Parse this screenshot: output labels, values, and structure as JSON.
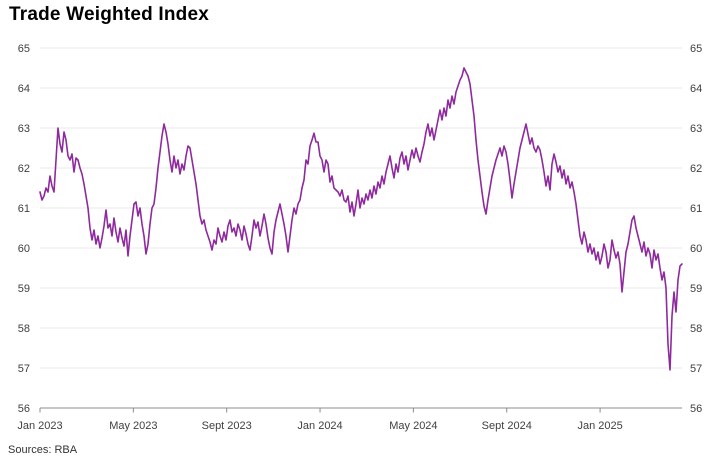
{
  "page": {
    "title": "Trade Weighted Index",
    "source": "Sources: RBA"
  },
  "colors": {
    "line": "#8E2A9E",
    "grid": "#e9e9e9",
    "axis": "#8c8c8c",
    "tick_text": "#404040",
    "title_text": "#000000"
  },
  "chart_data": {
    "type": "line",
    "title": "Trade Weighted Index",
    "xlabel": "",
    "ylabel": "",
    "ylim": [
      56,
      65
    ],
    "y_ticks": [
      56,
      57,
      58,
      59,
      60,
      61,
      62,
      63,
      64,
      65
    ],
    "y_labels_both_sides": true,
    "grid": "horizontal gridlines only",
    "legend": "none",
    "x_range_months": [
      0,
      27.51
    ],
    "x_start": "Jan 2023",
    "x_end": "mid-Apr 2025",
    "x_tick_months": [
      0,
      4,
      8,
      12,
      16,
      20,
      24
    ],
    "x_tick_labels": [
      "Jan 2023",
      "May 2023",
      "Sept 2023",
      "Jan 2024",
      "May 2024",
      "Sept 2024",
      "Jan 2025"
    ],
    "source": "Sources: RBA",
    "series": [
      {
        "name": "Trade Weighted Index",
        "color": "#8E2A9E",
        "sampling": "uniformly spaced in time from Jan 2023 to mid-Apr 2025",
        "values": [
          61.4,
          61.2,
          61.3,
          61.5,
          61.4,
          61.8,
          61.55,
          61.4,
          62.2,
          63.0,
          62.6,
          62.4,
          62.9,
          62.7,
          62.3,
          62.2,
          62.35,
          61.9,
          62.25,
          62.2,
          62.0,
          61.85,
          61.6,
          61.3,
          61.0,
          60.5,
          60.2,
          60.45,
          60.1,
          60.3,
          60.0,
          60.25,
          60.55,
          60.95,
          60.5,
          60.6,
          60.3,
          60.75,
          60.4,
          60.15,
          60.5,
          60.25,
          60.05,
          60.45,
          59.8,
          60.3,
          60.7,
          61.1,
          61.15,
          60.8,
          61.0,
          60.6,
          60.3,
          59.85,
          60.1,
          60.6,
          61.0,
          61.1,
          61.5,
          62.0,
          62.4,
          62.8,
          63.1,
          62.9,
          62.6,
          62.2,
          61.9,
          62.3,
          62.0,
          62.2,
          61.85,
          62.1,
          61.95,
          62.3,
          62.55,
          62.5,
          62.2,
          61.9,
          61.6,
          61.2,
          60.8,
          60.6,
          60.7,
          60.45,
          60.3,
          60.15,
          59.95,
          60.2,
          60.1,
          60.5,
          60.3,
          60.15,
          60.4,
          60.2,
          60.55,
          60.7,
          60.4,
          60.5,
          60.3,
          60.6,
          60.45,
          60.2,
          60.55,
          60.35,
          60.1,
          59.95,
          60.3,
          60.7,
          60.5,
          60.65,
          60.3,
          60.55,
          60.85,
          60.6,
          60.25,
          60.0,
          59.85,
          60.4,
          60.7,
          60.9,
          61.1,
          60.85,
          60.6,
          60.3,
          59.9,
          60.3,
          60.7,
          61.0,
          60.85,
          61.1,
          61.2,
          61.5,
          61.7,
          62.2,
          62.1,
          62.55,
          62.7,
          62.87,
          62.65,
          62.65,
          62.3,
          62.2,
          61.9,
          62.2,
          62.1,
          61.65,
          61.8,
          61.5,
          61.45,
          61.4,
          61.3,
          61.45,
          61.2,
          61.15,
          61.3,
          60.9,
          61.15,
          60.8,
          61.1,
          61.45,
          61.0,
          61.25,
          61.1,
          61.35,
          61.2,
          61.45,
          61.25,
          61.55,
          61.35,
          61.65,
          61.5,
          61.8,
          61.6,
          61.9,
          62.1,
          62.3,
          62.0,
          61.75,
          62.1,
          61.9,
          62.25,
          62.4,
          62.1,
          62.3,
          61.95,
          62.2,
          62.45,
          62.25,
          62.5,
          62.3,
          62.15,
          62.4,
          62.6,
          62.9,
          63.1,
          62.8,
          63.0,
          62.7,
          62.95,
          63.2,
          63.45,
          63.2,
          63.5,
          63.3,
          63.7,
          63.5,
          63.8,
          63.6,
          63.9,
          64.05,
          64.2,
          64.3,
          64.5,
          64.4,
          64.3,
          64.1,
          63.7,
          63.3,
          62.7,
          62.2,
          61.8,
          61.4,
          61.05,
          60.85,
          61.2,
          61.5,
          61.8,
          62.0,
          62.2,
          62.35,
          62.5,
          62.3,
          62.55,
          62.4,
          62.1,
          61.7,
          61.25,
          61.6,
          61.9,
          62.2,
          62.5,
          62.7,
          62.9,
          63.1,
          62.85,
          62.6,
          62.75,
          62.5,
          62.4,
          62.55,
          62.45,
          62.2,
          61.9,
          61.55,
          61.8,
          61.45,
          62.1,
          62.35,
          62.15,
          61.9,
          62.05,
          61.75,
          61.95,
          61.6,
          61.8,
          61.5,
          61.65,
          61.4,
          61.1,
          60.7,
          60.3,
          60.1,
          60.4,
          60.2,
          59.9,
          60.1,
          59.85,
          60.0,
          59.7,
          59.9,
          59.6,
          59.8,
          60.1,
          59.9,
          59.5,
          59.7,
          60.2,
          59.95,
          59.75,
          59.9,
          59.6,
          58.9,
          59.4,
          59.9,
          60.1,
          60.4,
          60.7,
          60.8,
          60.5,
          60.3,
          60.1,
          59.9,
          60.15,
          59.8,
          60.0,
          59.85,
          59.5,
          59.95,
          59.7,
          59.85,
          59.5,
          59.2,
          59.4,
          59.0,
          57.6,
          56.95,
          58.3,
          58.9,
          58.4,
          59.2,
          59.55,
          59.6
        ]
      }
    ]
  }
}
